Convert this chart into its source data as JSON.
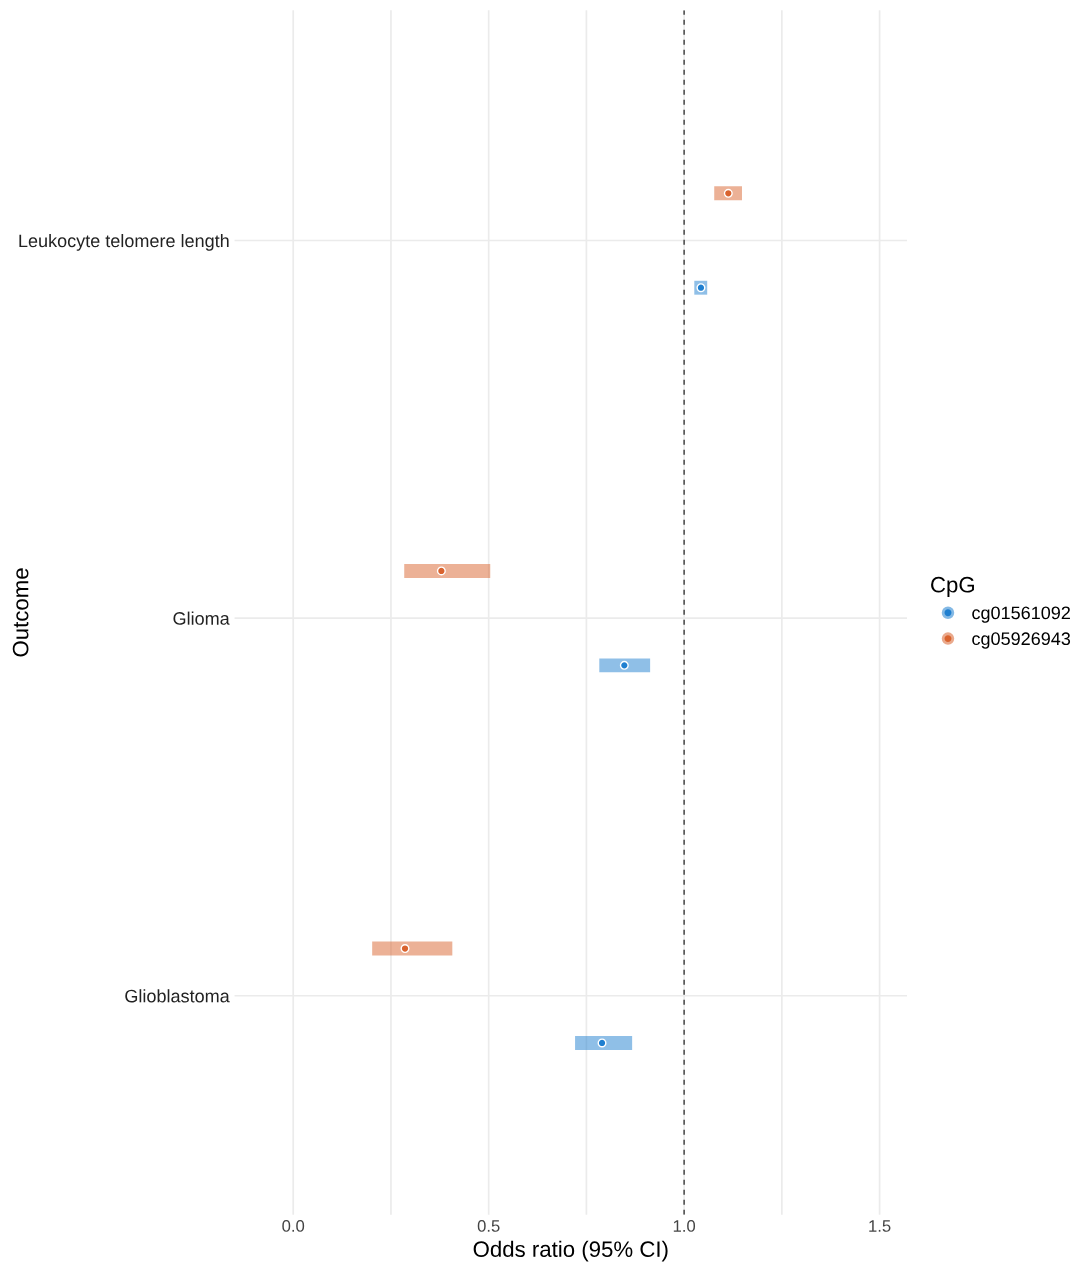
{
  "chart_data": {
    "type": "scatter",
    "orientation": "horizontal",
    "xlabel": "Odds ratio (95% CI)",
    "ylabel": "Outcome",
    "legend_title": "CpG",
    "categories": [
      "Leukocyte telomere length",
      "Glioma",
      "Glioblastoma"
    ],
    "series": [
      {
        "name": "cg01561092",
        "color": "#1f7fd0",
        "values": [
          1.043,
          0.847,
          0.79
        ],
        "errors": [
          [
            1.026,
            1.059
          ],
          [
            0.783,
            0.913
          ],
          [
            0.721,
            0.867
          ]
        ]
      },
      {
        "name": "cg05926943",
        "color": "#d9632e",
        "values": [
          1.113,
          0.379,
          0.286
        ],
        "errors": [
          [
            1.077,
            1.148
          ],
          [
            0.284,
            0.504
          ],
          [
            0.202,
            0.407
          ]
        ]
      }
    ],
    "xlim": [
      -0.15,
      1.57
    ],
    "xticks": [
      {
        "value": 0,
        "label": "0.0"
      },
      {
        "value": 0.25,
        "label": null
      },
      0.5,
      {
        "value": 0.75,
        "label": null
      },
      {
        "value": 1,
        "label": "1.0"
      },
      {
        "value": 1.25,
        "label": null
      },
      1.5
    ],
    "ref_lines": [
      {
        "axis": "x",
        "value": 1.0,
        "line_style": "dashed",
        "color": "#555555"
      }
    ],
    "grid": true,
    "legend": "right",
    "marker": "circle"
  }
}
